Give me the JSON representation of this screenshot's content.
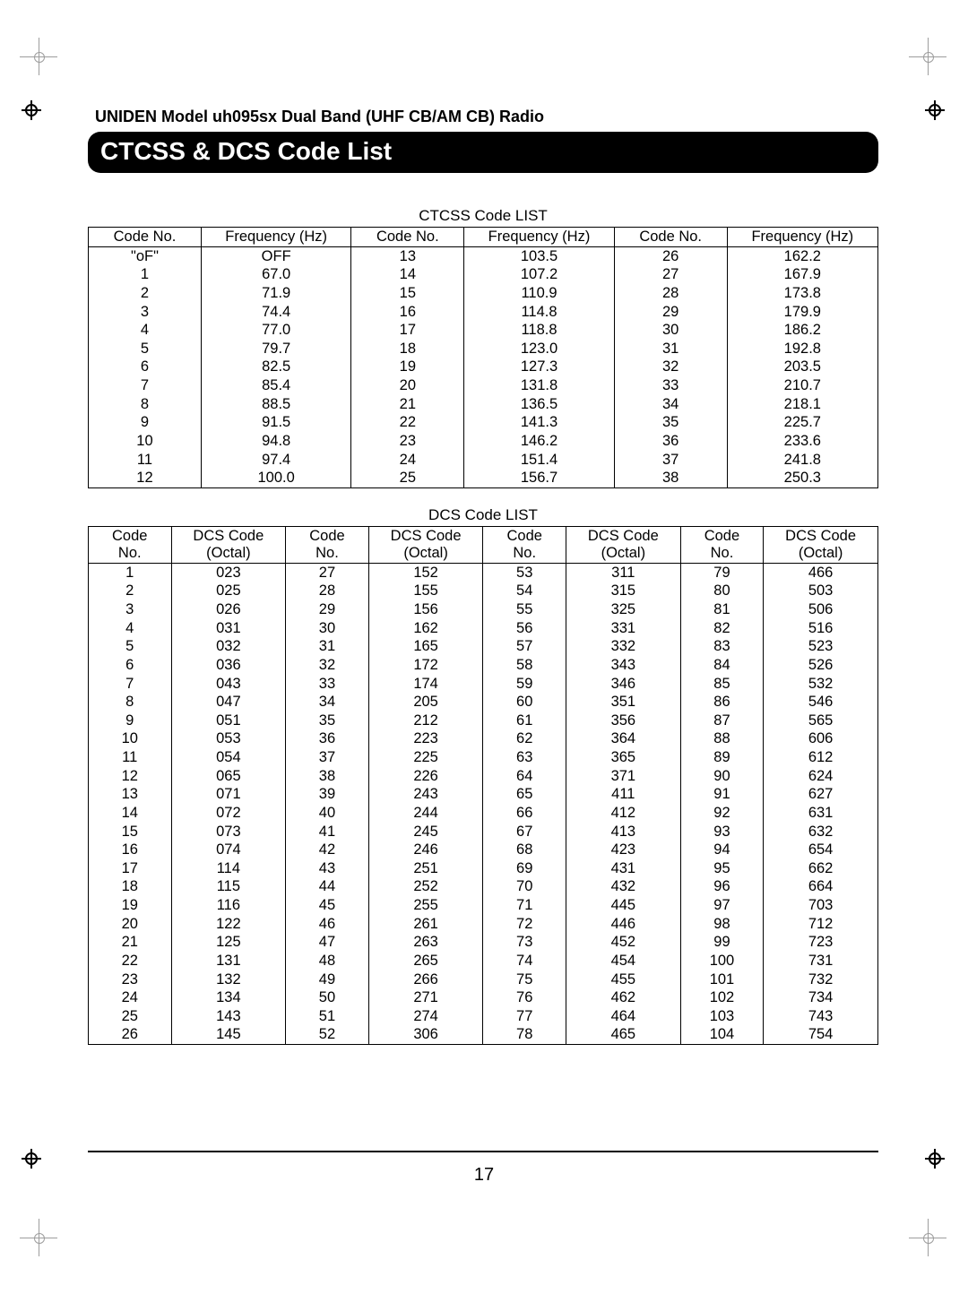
{
  "page": {
    "model_line": "UNIDEN Model uh095sx Dual Band (UHF CB/AM CB) Radio",
    "title": "CTCSS & DCS Code List",
    "page_number": "17"
  },
  "ctcss": {
    "title": "CTCSS Code LIST",
    "headers": [
      "Code No.",
      "Frequency (Hz)",
      "Code No.",
      "Frequency (Hz)",
      "Code No.",
      "Frequency (Hz)"
    ],
    "rows": [
      [
        "\"oF\"",
        "OFF",
        "13",
        "103.5",
        "26",
        "162.2"
      ],
      [
        "1",
        "67.0",
        "14",
        "107.2",
        "27",
        "167.9"
      ],
      [
        "2",
        "71.9",
        "15",
        "110.9",
        "28",
        "173.8"
      ],
      [
        "3",
        "74.4",
        "16",
        "114.8",
        "29",
        "179.9"
      ],
      [
        "4",
        "77.0",
        "17",
        "118.8",
        "30",
        "186.2"
      ],
      [
        "5",
        "79.7",
        "18",
        "123.0",
        "31",
        "192.8"
      ],
      [
        "6",
        "82.5",
        "19",
        "127.3",
        "32",
        "203.5"
      ],
      [
        "7",
        "85.4",
        "20",
        "131.8",
        "33",
        "210.7"
      ],
      [
        "8",
        "88.5",
        "21",
        "136.5",
        "34",
        "218.1"
      ],
      [
        "9",
        "91.5",
        "22",
        "141.3",
        "35",
        "225.7"
      ],
      [
        "10",
        "94.8",
        "23",
        "146.2",
        "36",
        "233.6"
      ],
      [
        "11",
        "97.4",
        "24",
        "151.4",
        "37",
        "241.8"
      ],
      [
        "12",
        "100.0",
        "25",
        "156.7",
        "38",
        "250.3"
      ]
    ],
    "col_widths_percent": [
      14.3,
      19,
      14.3,
      19,
      14.3,
      19.1
    ]
  },
  "dcs": {
    "title": "DCS Code LIST",
    "headers_top": [
      "Code",
      "DCS Code",
      "Code",
      "DCS Code",
      "Code",
      "DCS Code",
      "Code",
      "DCS Code"
    ],
    "headers_bottom": [
      "No.",
      "(Octal)",
      "No.",
      "(Octal)",
      "No.",
      "(Octal)",
      "No.",
      "(Octal)"
    ],
    "rows": [
      [
        "1",
        "023",
        "27",
        "152",
        "53",
        "311",
        "79",
        "466"
      ],
      [
        "2",
        "025",
        "28",
        "155",
        "54",
        "315",
        "80",
        "503"
      ],
      [
        "3",
        "026",
        "29",
        "156",
        "55",
        "325",
        "81",
        "506"
      ],
      [
        "4",
        "031",
        "30",
        "162",
        "56",
        "331",
        "82",
        "516"
      ],
      [
        "5",
        "032",
        "31",
        "165",
        "57",
        "332",
        "83",
        "523"
      ],
      [
        "6",
        "036",
        "32",
        "172",
        "58",
        "343",
        "84",
        "526"
      ],
      [
        "7",
        "043",
        "33",
        "174",
        "59",
        "346",
        "85",
        "532"
      ],
      [
        "8",
        "047",
        "34",
        "205",
        "60",
        "351",
        "86",
        "546"
      ],
      [
        "9",
        "051",
        "35",
        "212",
        "61",
        "356",
        "87",
        "565"
      ],
      [
        "10",
        "053",
        "36",
        "223",
        "62",
        "364",
        "88",
        "606"
      ],
      [
        "11",
        "054",
        "37",
        "225",
        "63",
        "365",
        "89",
        "612"
      ],
      [
        "12",
        "065",
        "38",
        "226",
        "64",
        "371",
        "90",
        "624"
      ],
      [
        "13",
        "071",
        "39",
        "243",
        "65",
        "411",
        "91",
        "627"
      ],
      [
        "14",
        "072",
        "40",
        "244",
        "66",
        "412",
        "92",
        "631"
      ],
      [
        "15",
        "073",
        "41",
        "245",
        "67",
        "413",
        "93",
        "632"
      ],
      [
        "16",
        "074",
        "42",
        "246",
        "68",
        "423",
        "94",
        "654"
      ],
      [
        "17",
        "114",
        "43",
        "251",
        "69",
        "431",
        "95",
        "662"
      ],
      [
        "18",
        "115",
        "44",
        "252",
        "70",
        "432",
        "96",
        "664"
      ],
      [
        "19",
        "116",
        "45",
        "255",
        "71",
        "445",
        "97",
        "703"
      ],
      [
        "20",
        "122",
        "46",
        "261",
        "72",
        "446",
        "98",
        "712"
      ],
      [
        "21",
        "125",
        "47",
        "263",
        "73",
        "452",
        "99",
        "723"
      ],
      [
        "22",
        "131",
        "48",
        "265",
        "74",
        "454",
        "100",
        "731"
      ],
      [
        "23",
        "132",
        "49",
        "266",
        "75",
        "455",
        "101",
        "732"
      ],
      [
        "24",
        "134",
        "50",
        "271",
        "76",
        "462",
        "102",
        "734"
      ],
      [
        "25",
        "143",
        "51",
        "274",
        "77",
        "464",
        "103",
        "743"
      ],
      [
        "26",
        "145",
        "52",
        "306",
        "78",
        "465",
        "104",
        "754"
      ]
    ],
    "col_widths_percent": [
      10.5,
      14.5,
      10.5,
      14.5,
      10.5,
      14.5,
      10.5,
      14.5
    ]
  },
  "colors": {
    "page_bg": "#ffffff",
    "text": "#000000",
    "title_bg": "#000000",
    "title_fg": "#ffffff",
    "crop_mark": "#9d9d9d"
  }
}
